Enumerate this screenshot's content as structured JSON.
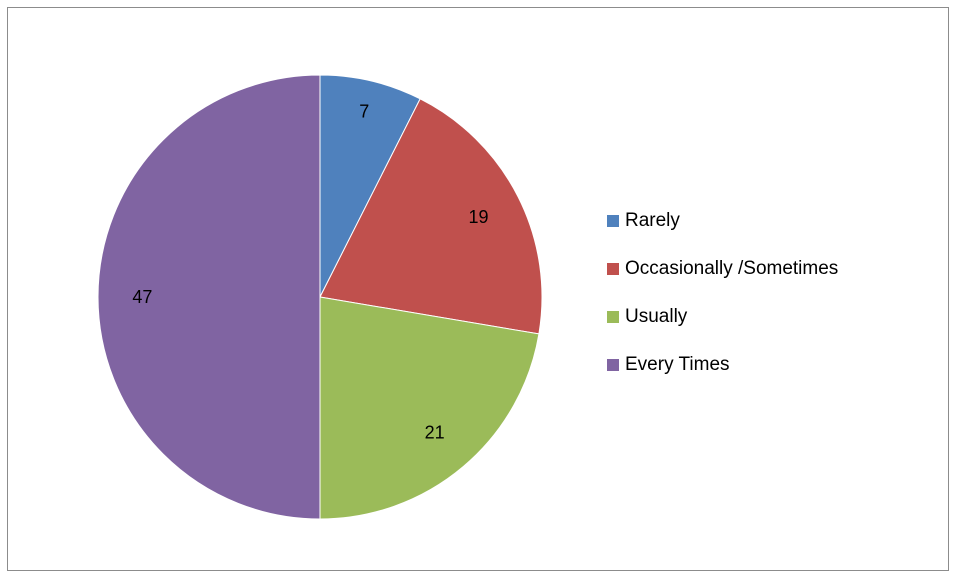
{
  "chart_data": {
    "type": "pie",
    "categories": [
      "Rarely",
      "Occasionally /Sometimes",
      "Usually",
      "Every Times"
    ],
    "values": [
      7,
      19,
      21,
      47
    ],
    "colors": [
      "#4f81bd",
      "#c0504d",
      "#9bbb59",
      "#8064a2"
    ],
    "data_labels": [
      "7",
      "19",
      "21",
      "47"
    ],
    "start_angle_deg": 0,
    "direction": "clockwise",
    "legend_position": "right"
  }
}
